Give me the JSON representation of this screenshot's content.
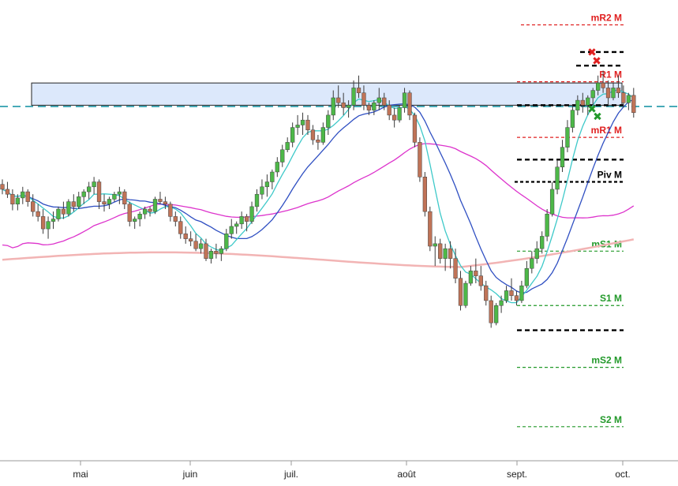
{
  "chart_data": {
    "type": "candlestick",
    "x_ticks": [
      "mai",
      "juin",
      "juil.",
      "août",
      "sept.",
      "oct."
    ],
    "colors": {
      "up": "#4db848",
      "down": "#c07357",
      "wick": "#3a3a3a",
      "ma_fast": "#3ec9c9",
      "ma_mid": "#2f4fc2",
      "ma_slow": "#dd33cc",
      "ma_long": "#f2b4b4",
      "resistance": "#e02020",
      "support": "#22992a",
      "pivot": "#000000",
      "zone_fill": "#dce8fb",
      "cyan_dash": "#1f97a8",
      "axis": "#999999"
    },
    "series": [
      {
        "name": "candles",
        "values": [
          [
            266,
            270,
            258,
            262
          ],
          [
            262,
            268,
            255,
            258
          ],
          [
            258,
            262,
            245,
            250
          ],
          [
            250,
            258,
            245,
            255
          ],
          [
            255,
            264,
            250,
            260
          ],
          [
            260,
            262,
            248,
            252
          ],
          [
            252,
            258,
            240,
            244
          ],
          [
            244,
            250,
            236,
            240
          ],
          [
            240,
            246,
            226,
            230
          ],
          [
            230,
            240,
            222,
            236
          ],
          [
            236,
            244,
            230,
            238
          ],
          [
            238,
            248,
            236,
            246
          ],
          [
            246,
            252,
            238,
            242
          ],
          [
            242,
            254,
            240,
            252
          ],
          [
            252,
            258,
            244,
            248
          ],
          [
            248,
            260,
            246,
            256
          ],
          [
            256,
            262,
            250,
            260
          ],
          [
            260,
            268,
            254,
            264
          ],
          [
            264,
            272,
            258,
            268
          ],
          [
            268,
            270,
            246,
            252
          ],
          [
            252,
            258,
            244,
            250
          ],
          [
            250,
            256,
            246,
            254
          ],
          [
            254,
            260,
            252,
            258
          ],
          [
            258,
            264,
            250,
            260
          ],
          [
            260,
            262,
            246,
            250
          ],
          [
            250,
            252,
            232,
            236
          ],
          [
            236,
            240,
            230,
            238
          ],
          [
            238,
            244,
            232,
            242
          ],
          [
            242,
            248,
            238,
            246
          ],
          [
            246,
            248,
            240,
            244
          ],
          [
            244,
            256,
            242,
            254
          ],
          [
            254,
            260,
            250,
            252
          ],
          [
            252,
            256,
            246,
            250
          ],
          [
            250,
            252,
            236,
            240
          ],
          [
            240,
            244,
            232,
            236
          ],
          [
            236,
            240,
            222,
            226
          ],
          [
            226,
            232,
            218,
            222
          ],
          [
            222,
            228,
            216,
            220
          ],
          [
            220,
            226,
            212,
            214
          ],
          [
            214,
            222,
            210,
            218
          ],
          [
            218,
            222,
            204,
            206
          ],
          [
            206,
            214,
            202,
            212
          ],
          [
            212,
            218,
            206,
            210
          ],
          [
            210,
            216,
            204,
            214
          ],
          [
            214,
            230,
            212,
            226
          ],
          [
            226,
            238,
            222,
            232
          ],
          [
            232,
            236,
            226,
            234
          ],
          [
            234,
            244,
            230,
            240
          ],
          [
            240,
            242,
            228,
            236
          ],
          [
            236,
            252,
            234,
            248
          ],
          [
            248,
            262,
            244,
            258
          ],
          [
            258,
            270,
            254,
            264
          ],
          [
            264,
            274,
            256,
            268
          ],
          [
            268,
            278,
            262,
            276
          ],
          [
            276,
            288,
            272,
            284
          ],
          [
            284,
            298,
            280,
            294
          ],
          [
            294,
            304,
            292,
            300
          ],
          [
            300,
            316,
            296,
            312
          ],
          [
            312,
            322,
            306,
            314
          ],
          [
            314,
            324,
            306,
            318
          ],
          [
            318,
            322,
            306,
            310
          ],
          [
            310,
            314,
            298,
            302
          ],
          [
            302,
            306,
            294,
            300
          ],
          [
            300,
            316,
            298,
            312
          ],
          [
            312,
            326,
            306,
            322
          ],
          [
            322,
            342,
            318,
            336
          ],
          [
            336,
            346,
            328,
            332
          ],
          [
            332,
            340,
            322,
            328
          ],
          [
            328,
            334,
            320,
            330
          ],
          [
            330,
            350,
            326,
            344
          ],
          [
            344,
            354,
            336,
            340
          ],
          [
            340,
            346,
            326,
            330
          ],
          [
            330,
            332,
            322,
            326
          ],
          [
            326,
            334,
            322,
            332
          ],
          [
            332,
            344,
            326,
            336
          ],
          [
            336,
            340,
            326,
            330
          ],
          [
            330,
            334,
            318,
            322
          ],
          [
            322,
            328,
            312,
            318
          ],
          [
            318,
            330,
            316,
            328
          ],
          [
            328,
            344,
            324,
            340
          ],
          [
            340,
            342,
            318,
            322
          ],
          [
            322,
            324,
            296,
            300
          ],
          [
            300,
            304,
            268,
            272
          ],
          [
            272,
            276,
            240,
            244
          ],
          [
            244,
            248,
            212,
            216
          ],
          [
            216,
            224,
            200,
            218
          ],
          [
            218,
            222,
            202,
            206
          ],
          [
            206,
            218,
            196,
            214
          ],
          [
            214,
            220,
            198,
            206
          ],
          [
            206,
            214,
            186,
            190
          ],
          [
            190,
            196,
            164,
            168
          ],
          [
            168,
            188,
            166,
            186
          ],
          [
            186,
            200,
            184,
            196
          ],
          [
            196,
            206,
            186,
            192
          ],
          [
            192,
            200,
            180,
            184
          ],
          [
            184,
            188,
            168,
            172
          ],
          [
            172,
            176,
            150,
            154
          ],
          [
            154,
            170,
            152,
            168
          ],
          [
            168,
            176,
            162,
            172
          ],
          [
            172,
            184,
            170,
            180
          ],
          [
            180,
            190,
            172,
            176
          ],
          [
            176,
            180,
            168,
            172
          ],
          [
            172,
            188,
            170,
            184
          ],
          [
            184,
            204,
            182,
            198
          ],
          [
            198,
            212,
            194,
            206
          ],
          [
            206,
            220,
            202,
            214
          ],
          [
            214,
            228,
            210,
            224
          ],
          [
            224,
            246,
            220,
            242
          ],
          [
            242,
            268,
            240,
            262
          ],
          [
            262,
            286,
            258,
            280
          ],
          [
            280,
            302,
            276,
            296
          ],
          [
            296,
            318,
            292,
            312
          ],
          [
            312,
            330,
            308,
            326
          ],
          [
            326,
            338,
            322,
            334
          ],
          [
            334,
            340,
            324,
            330
          ],
          [
            330,
            338,
            322,
            336
          ],
          [
            336,
            344,
            330,
            342
          ],
          [
            342,
            354,
            338,
            348
          ],
          [
            348,
            358,
            340,
            344
          ],
          [
            344,
            350,
            330,
            336
          ],
          [
            336,
            348,
            334,
            344
          ],
          [
            344,
            354,
            336,
            340
          ],
          [
            340,
            346,
            328,
            332
          ],
          [
            332,
            340,
            326,
            338
          ],
          [
            338,
            344,
            320,
            324
          ]
        ]
      }
    ],
    "levels": [
      {
        "label": "mR2 M",
        "value": 395,
        "kind": "resistance",
        "style": "dashed",
        "start": 660
      },
      {
        "label": "R1 M",
        "value": 349,
        "kind": "resistance",
        "style": "dashed",
        "start": 655
      },
      {
        "label": "mR1 M",
        "value": 304,
        "kind": "resistance",
        "style": "dashed",
        "start": 655
      },
      {
        "label": "Piv M",
        "value": 268,
        "kind": "pivot",
        "style": "dashed",
        "start": 652
      },
      {
        "label": "mS1 M",
        "value": 212,
        "kind": "support",
        "style": "dashed",
        "start": 655
      },
      {
        "label": "S1 M",
        "value": 168,
        "kind": "support",
        "style": "dashed",
        "start": 655
      },
      {
        "label": "mS2 M",
        "value": 118,
        "kind": "support",
        "style": "dashed",
        "start": 655
      },
      {
        "label": "S2 M",
        "value": 70,
        "kind": "support",
        "style": "dashed",
        "start": 655
      }
    ],
    "extra_levels": [
      {
        "value": 330,
        "kind": "pivot",
        "start": 655
      },
      {
        "value": 286,
        "kind": "pivot",
        "start": 655
      },
      {
        "value": 148,
        "kind": "pivot",
        "start": 655
      },
      {
        "value": 373,
        "kind": "pivot",
        "start": 735
      },
      {
        "value": 362,
        "kind": "pivot",
        "start": 730
      }
    ],
    "zone": {
      "low": 330,
      "high": 348
    },
    "horizontal_line": 329,
    "ylim": [
      45,
      410
    ]
  }
}
